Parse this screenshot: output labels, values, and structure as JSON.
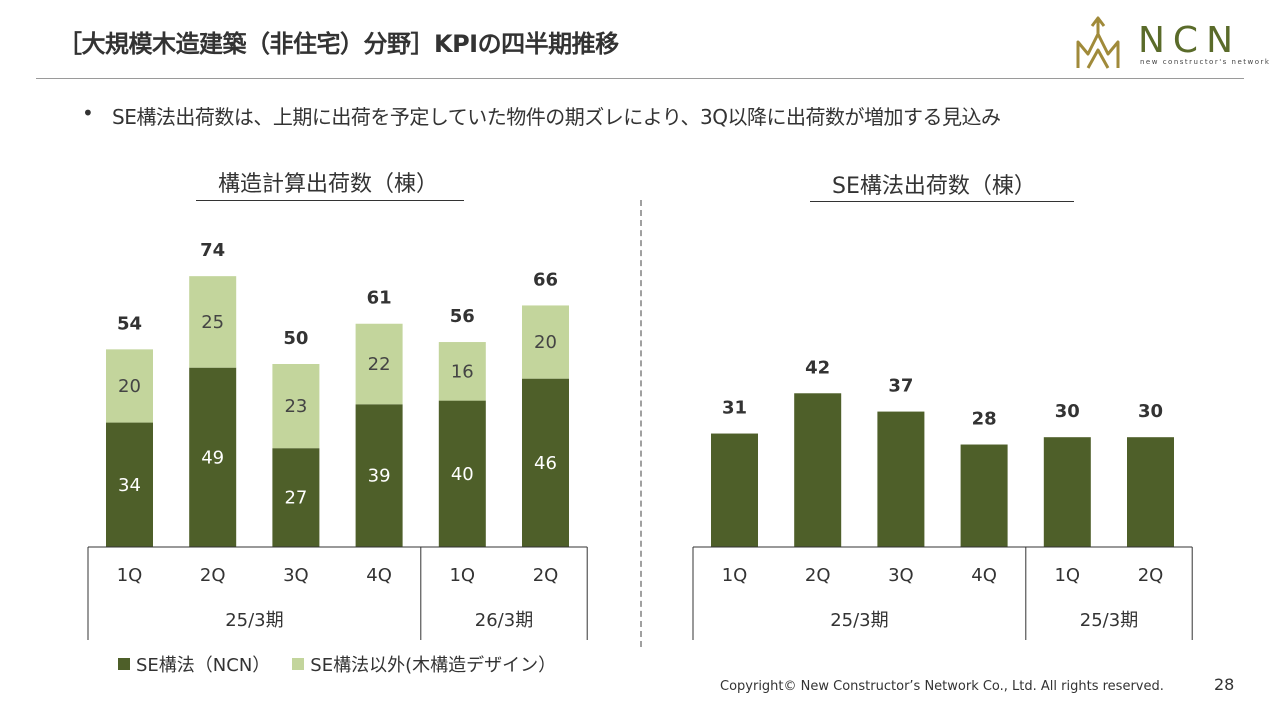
{
  "slide": {
    "title": "［大規模木造建築（非住宅）分野］KPIの四半期推移",
    "bullet": "SE構法出荷数は、上期に出荷を予定していた物件の期ズレにより、3Q以降に出荷数が増加する見込み",
    "logo_text": "NCN",
    "logo_sub": "new constructor's network",
    "copyright": "Copyright© New Constructor’s Network Co., Ltd. All rights reserved.",
    "page_number": "28"
  },
  "colors": {
    "dark_green": "#4e5f29",
    "light_green": "#c3d59c",
    "logo_gold": "#a08a3a"
  },
  "chart_data": [
    {
      "type": "bar",
      "stacked": true,
      "title": "構造計算出荷数（棟）",
      "categories": [
        "1Q",
        "2Q",
        "3Q",
        "4Q",
        "1Q",
        "2Q"
      ],
      "groups": [
        {
          "label": "25/3期",
          "count": 4
        },
        {
          "label": "26/3期",
          "count": 2
        }
      ],
      "series": [
        {
          "name": "SE構法（NCN）",
          "values": [
            34,
            49,
            27,
            39,
            40,
            46
          ],
          "color": "#4e5f29"
        },
        {
          "name": "SE構法以外(木構造デザイン）",
          "values": [
            20,
            25,
            23,
            22,
            16,
            20
          ],
          "color": "#c3d59c"
        }
      ],
      "totals": [
        54,
        74,
        50,
        61,
        56,
        66
      ],
      "ylim": [
        0,
        80
      ],
      "grid": false
    },
    {
      "type": "bar",
      "title": "SE構法出荷数（棟）",
      "categories": [
        "1Q",
        "2Q",
        "3Q",
        "4Q",
        "1Q",
        "2Q"
      ],
      "groups": [
        {
          "label": "25/3期",
          "count": 4
        },
        {
          "label": "25/3期",
          "count": 2
        }
      ],
      "values": [
        31,
        42,
        37,
        28,
        30,
        30
      ],
      "ylim": [
        0,
        80
      ],
      "grid": false
    }
  ],
  "legend": {
    "items": [
      {
        "label": "SE構法（NCN）",
        "color": "#4e5f29"
      },
      {
        "label": "SE構法以外(木構造デザイン）",
        "color": "#c3d59c"
      }
    ]
  }
}
